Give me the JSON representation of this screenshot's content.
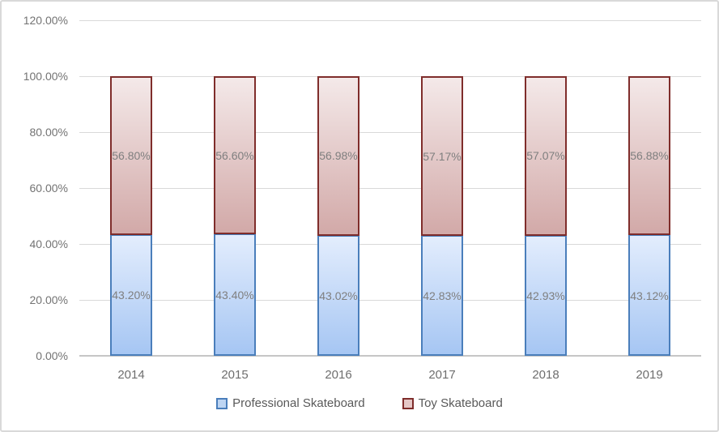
{
  "chart_data": {
    "type": "bar",
    "subtype": "stacked-100",
    "title": "",
    "categories": [
      "2014",
      "2015",
      "2016",
      "2017",
      "2018",
      "2019"
    ],
    "series": [
      {
        "name": "Professional Skateboard",
        "values": [
          43.2,
          43.4,
          43.02,
          42.83,
          42.93,
          43.12
        ],
        "data_labels": [
          "43.20%",
          "43.40%",
          "43.02%",
          "42.83%",
          "42.93%",
          "43.12%"
        ],
        "fill_top": "#E3EDFD",
        "fill_bottom": "#A6C6F3",
        "border_color": "#4A7EBB"
      },
      {
        "name": "Toy Skateboard",
        "values": [
          56.8,
          56.6,
          56.98,
          57.17,
          57.07,
          56.88
        ],
        "data_labels": [
          "56.80%",
          "56.60%",
          "56.98%",
          "57.17%",
          "57.07%",
          "56.88%"
        ],
        "fill_top": "#F4E9E9",
        "fill_bottom": "#D2A9A8",
        "border_color": "#7F2D2B"
      }
    ],
    "y_axis": {
      "tick_labels": [
        "120.00%",
        "100.00%",
        "80.00%",
        "60.00%",
        "40.00%",
        "20.00%",
        "0.00%"
      ],
      "tick_values": [
        120,
        100,
        80,
        60,
        40,
        20,
        0
      ],
      "ylim": [
        0,
        120
      ]
    },
    "grid": true,
    "legend_position": "bottom"
  },
  "legend": {
    "items": [
      {
        "label": "Professional Skateboard",
        "fill": "#BDD5F3",
        "border": "#4A7EBB"
      },
      {
        "label": "Toy Skateboard",
        "fill": "#E5C8C7",
        "border": "#7F2D2B"
      }
    ]
  },
  "colors": {
    "gridline": "#D9D9D9",
    "axis_line": "#C6C6C6",
    "tick_text": "#737373",
    "category_text": "#6E6E6E",
    "data_label_text": "#7F7F7F",
    "legend_text": "#595959",
    "frame_border": "#D9D9D9",
    "background": "#FFFFFF"
  }
}
